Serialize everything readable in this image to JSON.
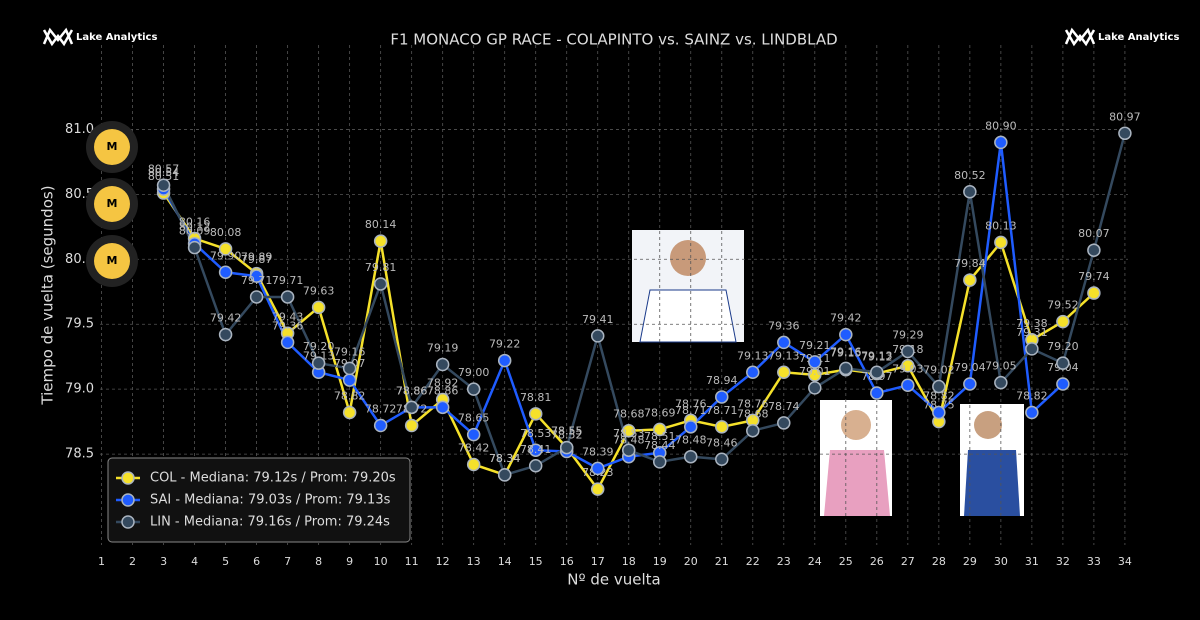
{
  "brand": "Lake Analytics",
  "tyre_badges": [
    "M",
    "M",
    "M"
  ],
  "chart_data": {
    "type": "line",
    "title": "F1 MONACO GP RACE - COLAPINTO vs. SAINZ vs. LINDBLAD",
    "x_label": "Nº de vuelta",
    "y_label": "Tiempo de vuelta (segundos)",
    "x": [
      3,
      4,
      5,
      6,
      7,
      8,
      9,
      10,
      11,
      12,
      13,
      14,
      15,
      16,
      17,
      18,
      19,
      20,
      21,
      22,
      23,
      24,
      25,
      26,
      27,
      28,
      29,
      30,
      31,
      32,
      33,
      34
    ],
    "xlim": [
      0.95,
      34.1
    ],
    "xticks": [
      1,
      2,
      3,
      4,
      5,
      6,
      7,
      8,
      9,
      10,
      11,
      12,
      13,
      14,
      15,
      16,
      17,
      18,
      19,
      20,
      21,
      22,
      23,
      24,
      25,
      26,
      27,
      28,
      29,
      30,
      31,
      32,
      33,
      34
    ],
    "ylim": [
      77.8,
      81.65
    ],
    "yticks": [
      {
        "value": 78.5,
        "label": "78.5"
      },
      {
        "value": 79,
        "label": "79.0"
      },
      {
        "value": 79.5,
        "label": "79.5"
      },
      {
        "value": 80,
        "label": "80.0"
      },
      {
        "value": 80.5,
        "label": "80.5"
      },
      {
        "value": 81,
        "label": "81.0"
      }
    ],
    "grid": true,
    "legend": "lower left",
    "series": [
      {
        "name": "COL - Mediana: 79.12s / Prom: 79.20s",
        "color": "#f5e12a",
        "values": [
          80.51,
          80.16,
          80.08,
          79.89,
          79.43,
          79.63,
          78.82,
          80.14,
          78.72,
          78.92,
          78.42,
          78.34,
          78.81,
          78.55,
          78.23,
          78.68,
          78.69,
          78.76,
          78.71,
          78.76,
          79.13,
          79.11,
          79.15,
          79.12,
          79.18,
          78.75,
          79.84,
          80.13,
          79.38,
          79.52,
          79.74,
          null
        ],
        "value_labels": [
          "80.51",
          "80.16",
          "80.08",
          "79.89",
          "79.43",
          "79.63",
          "78.82",
          "80.14",
          "78.72",
          "78.92",
          "78.42",
          "78.34",
          "78.81",
          "78.55",
          "78.23",
          "78.68",
          "78.69",
          "78.76",
          "78.71",
          "78.76",
          "79.13",
          "79.11",
          "79.15",
          "79.12",
          "79.18",
          "78.75",
          "79.84",
          "80.13",
          "79.38",
          "79.52",
          "79.74",
          null
        ]
      },
      {
        "name": "SAI - Mediana: 79.03s / Prom: 79.13s",
        "color": "#1f5cff",
        "values": [
          80.54,
          80.12,
          79.9,
          79.87,
          79.36,
          79.13,
          79.07,
          78.72,
          78.86,
          78.86,
          78.65,
          79.22,
          78.53,
          78.52,
          78.39,
          78.48,
          78.51,
          78.71,
          78.94,
          79.13,
          79.36,
          79.21,
          79.42,
          78.97,
          79.03,
          78.82,
          79.04,
          80.9,
          78.82,
          79.04,
          null,
          null
        ],
        "value_labels": [
          "80.54",
          "80.12",
          "79.90",
          "79.87",
          "79.36",
          "79.13",
          "79.07",
          "78.72",
          "78.86",
          "78.86",
          "78.65",
          "79.22",
          "78.53",
          "78.52",
          "78.39",
          "78.48",
          "78.51",
          "78.71",
          "78.94",
          "79.13",
          "79.36",
          "79.21",
          "79.42",
          "78.97",
          "79.03",
          "78.82",
          "79.04",
          "80.90",
          "78.82",
          "79.04",
          null,
          null
        ]
      },
      {
        "name": "LIN - Mediana: 79.16s / Prom: 79.24s",
        "color": "#34495e",
        "values": [
          80.57,
          80.09,
          79.42,
          79.71,
          79.71,
          79.2,
          79.16,
          79.81,
          78.86,
          79.19,
          79.0,
          78.34,
          78.41,
          78.55,
          79.41,
          78.53,
          78.44,
          78.48,
          78.46,
          78.68,
          78.74,
          79.01,
          79.16,
          79.13,
          79.29,
          79.02,
          80.52,
          79.05,
          79.31,
          79.2,
          80.07,
          80.97
        ],
        "value_labels": [
          "80.57",
          "80.09",
          "79.42",
          "79.71",
          "79.71",
          "79.20",
          "79.16",
          "79.81",
          "78.86",
          "79.19",
          "79.00",
          "78.34",
          "78.41",
          "78.55",
          "79.41",
          "78.53",
          "78.44",
          "78.48",
          "78.46",
          "78.68",
          "78.74",
          "79.01",
          "79.16",
          "79.13",
          "79.29",
          "79.02",
          "80.52",
          "79.05",
          "79.31",
          "79.20",
          "80.07",
          "80.97"
        ]
      }
    ]
  }
}
